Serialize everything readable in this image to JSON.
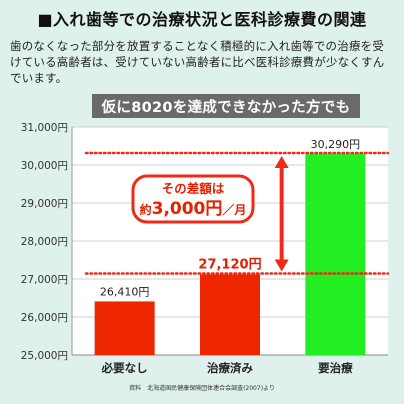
{
  "title": "■入れ歯等での治療状況と医科診療費の関連",
  "description": "歯のなくなった部分を放置することなく積極的に入れ歯等での治療を受けている高齢者は、受けていない高齢者に比べ医科診療費が少なくすんでいます。",
  "banner": "仮に8020を達成できなかった方でも",
  "source": "資料　北海道国民健康保険団体連合会調査(2007)より",
  "chart_data": {
    "type": "bar",
    "categories": [
      "必要なし",
      "治療済み",
      "要治療"
    ],
    "values": [
      26410,
      27120,
      30290
    ],
    "value_labels": [
      "26,410円",
      "27,120円",
      "30,290円"
    ],
    "bar_colors": [
      "#ee2600",
      "#ee2600",
      "#22ee22"
    ],
    "ylim": [
      25000,
      31000
    ],
    "yticks": [
      25000,
      26000,
      27000,
      28000,
      29000,
      30000,
      31000
    ],
    "ytick_labels": [
      "25,000円",
      "26,000円",
      "27,000円",
      "28,000円",
      "29,000円",
      "30,000円",
      "31,000円"
    ],
    "annotation": {
      "line1": "その差額は",
      "line2_prefix": "約",
      "line2_value": "3,000円",
      "line2_suffix": "／月",
      "from_value": 27120,
      "to_value": 30290
    },
    "grid": true
  }
}
